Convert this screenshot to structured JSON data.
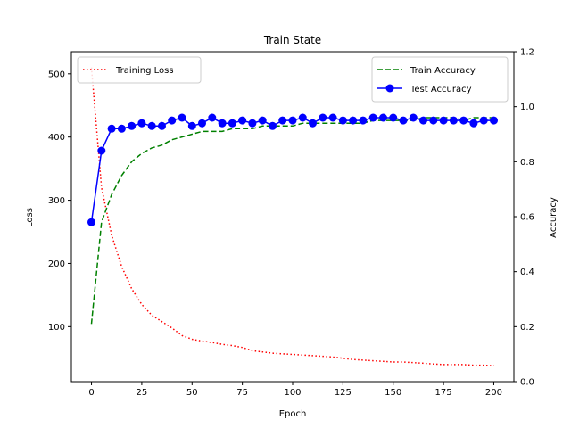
{
  "chart_data": {
    "type": "line",
    "title": "Train State",
    "xlabel": "Epoch",
    "ylabel_left": "Loss",
    "ylabel_right": "Accuracy",
    "xlim": [
      -10,
      210
    ],
    "ylim_left": [
      13,
      535
    ],
    "ylim_right": [
      0.0,
      1.2
    ],
    "xticks": [
      0,
      25,
      50,
      75,
      100,
      125,
      150,
      175,
      200
    ],
    "yticks_left": [
      100,
      200,
      300,
      400,
      500
    ],
    "yticks_right": [
      0.0,
      0.2,
      0.4,
      0.6,
      0.8,
      1.0,
      1.2
    ],
    "grid": false,
    "legend_left": "upper-left",
    "legend_right": "upper-right",
    "series": [
      {
        "name": "Training Loss",
        "axis": "left",
        "color": "#ff0000",
        "style": "dotted",
        "x": [
          0,
          5,
          10,
          15,
          20,
          25,
          30,
          35,
          40,
          45,
          50,
          55,
          60,
          65,
          70,
          75,
          80,
          85,
          90,
          95,
          100,
          105,
          110,
          115,
          120,
          125,
          130,
          135,
          140,
          145,
          150,
          155,
          160,
          165,
          170,
          175,
          180,
          185,
          190,
          195,
          200
        ],
        "values": [
          510,
          320,
          245,
          195,
          160,
          135,
          118,
          108,
          98,
          86,
          80,
          77,
          75,
          72,
          70,
          67,
          62,
          60,
          58,
          57,
          56,
          55,
          54,
          53,
          52,
          50,
          48,
          47,
          46,
          45,
          44,
          44,
          43,
          42,
          41,
          40,
          40,
          40,
          39,
          39,
          38
        ]
      },
      {
        "name": "Train Accuracy",
        "axis": "right",
        "color": "#008000",
        "style": "dashed",
        "x": [
          0,
          5,
          10,
          15,
          20,
          25,
          30,
          35,
          40,
          45,
          50,
          55,
          60,
          65,
          70,
          75,
          80,
          85,
          90,
          95,
          100,
          105,
          110,
          115,
          120,
          125,
          130,
          135,
          140,
          145,
          150,
          155,
          160,
          165,
          170,
          175,
          180,
          185,
          190,
          195,
          200
        ],
        "values": [
          0.21,
          0.58,
          0.68,
          0.75,
          0.8,
          0.83,
          0.85,
          0.86,
          0.88,
          0.89,
          0.9,
          0.91,
          0.91,
          0.91,
          0.92,
          0.92,
          0.92,
          0.93,
          0.93,
          0.93,
          0.93,
          0.94,
          0.94,
          0.94,
          0.94,
          0.94,
          0.94,
          0.94,
          0.95,
          0.95,
          0.95,
          0.95,
          0.95,
          0.96,
          0.96,
          0.96,
          0.96,
          0.95,
          0.96,
          0.96,
          0.96
        ]
      },
      {
        "name": "Test Accuracy",
        "axis": "right",
        "color": "#0000ff",
        "style": "solid-marker",
        "x": [
          0,
          5,
          10,
          15,
          20,
          25,
          30,
          35,
          40,
          45,
          50,
          55,
          60,
          65,
          70,
          75,
          80,
          85,
          90,
          95,
          100,
          105,
          110,
          115,
          120,
          125,
          130,
          135,
          140,
          145,
          150,
          155,
          160,
          165,
          170,
          175,
          180,
          185,
          190,
          195,
          200
        ],
        "values": [
          0.58,
          0.84,
          0.92,
          0.92,
          0.93,
          0.94,
          0.93,
          0.93,
          0.95,
          0.96,
          0.93,
          0.94,
          0.96,
          0.94,
          0.94,
          0.95,
          0.94,
          0.95,
          0.93,
          0.95,
          0.95,
          0.96,
          0.94,
          0.96,
          0.96,
          0.95,
          0.95,
          0.95,
          0.96,
          0.96,
          0.96,
          0.95,
          0.96,
          0.95,
          0.95,
          0.95,
          0.95,
          0.95,
          0.94,
          0.95,
          0.95
        ]
      }
    ]
  }
}
